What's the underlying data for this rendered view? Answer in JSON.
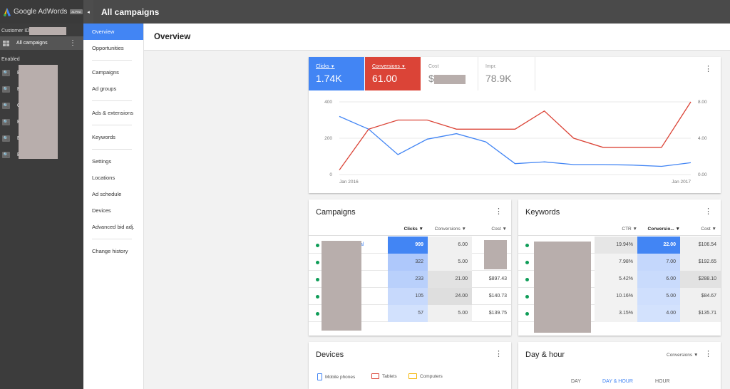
{
  "app": {
    "logo_text": "Google AdWords",
    "badge": "ALPHA"
  },
  "header": {
    "title": "All campaigns",
    "collapse_icon": "◂"
  },
  "sidebar": {
    "customer_id_label": "Customer ID",
    "all_campaigns_label": "All campaigns",
    "enabled_label": "Enabled",
    "campaigns": [
      {
        "initial": "E"
      },
      {
        "initial": "E"
      },
      {
        "initial": "C"
      },
      {
        "initial": "E"
      },
      {
        "initial": "E"
      },
      {
        "initial": "E"
      }
    ]
  },
  "nav": {
    "items": [
      "Overview",
      "Opportunities",
      "Campaigns",
      "Ad groups",
      "Ads & extensions",
      "Keywords",
      "Settings",
      "Locations",
      "Ad schedule",
      "Devices",
      "Advanced bid adj.",
      "Change history"
    ],
    "active": "Overview"
  },
  "page_title": "Overview",
  "metrics": [
    {
      "label": "Clicks",
      "value": "1.74K",
      "color": "#4285f4"
    },
    {
      "label": "Conversions",
      "value": "61.00",
      "color": "#db4437"
    },
    {
      "label": "Cost",
      "value": "$"
    },
    {
      "label": "Impr.",
      "value": "78.9K"
    }
  ],
  "chart_data": {
    "type": "line",
    "x_labels": [
      "Jan 2016",
      "Jan 2017"
    ],
    "y_left_ticks": [
      "400",
      "200",
      "0"
    ],
    "y_right_ticks": [
      "8.00",
      "4.00",
      "0.00"
    ],
    "y_left_range": [
      0,
      400
    ],
    "y_right_range": [
      0,
      8
    ],
    "series": [
      {
        "name": "Clicks",
        "color": "#4285f4",
        "axis": "left",
        "values": [
          320,
          250,
          110,
          195,
          225,
          180,
          60,
          70,
          55,
          55,
          52,
          45,
          65
        ]
      },
      {
        "name": "Conversions",
        "color": "#db4437",
        "axis": "right",
        "values": [
          0.5,
          5.0,
          6.0,
          6.0,
          5.0,
          5.0,
          5.0,
          7.0,
          4.0,
          3.0,
          3.0,
          3.0,
          8.0
        ]
      }
    ]
  },
  "campaigns_table": {
    "title": "Campaigns",
    "headers": [
      "Clicks",
      "Conversions",
      "Cost"
    ],
    "rows": [
      {
        "link": "al",
        "clicks": "999",
        "conversions": "6.00",
        "cost": "$"
      },
      {
        "link": "",
        "clicks": "322",
        "conversions": "5.00",
        "cost": ""
      },
      {
        "link": "",
        "clicks": "233",
        "conversions": "21.00",
        "cost": "$897.43"
      },
      {
        "link": "",
        "clicks": "105",
        "conversions": "24.00",
        "cost": "$140.73"
      },
      {
        "link": "",
        "clicks": "57",
        "conversions": "5.00",
        "cost": "$139.75"
      }
    ]
  },
  "keywords_table": {
    "title": "Keywords",
    "headers": [
      "CTR",
      "Conversio...",
      "Cost"
    ],
    "rows": [
      {
        "ctr": "19.94%",
        "conversions": "22.00",
        "cost": "$106.54"
      },
      {
        "ctr": "7.98%",
        "conversions": "7.00",
        "cost": "$192.65"
      },
      {
        "ctr": "5.42%",
        "conversions": "6.00",
        "cost": "$288.10"
      },
      {
        "ctr": "10.16%",
        "conversions": "5.00",
        "cost": "$84.67"
      },
      {
        "ctr": "3.15%",
        "conversions": "4.00",
        "cost": "$135.71"
      }
    ]
  },
  "devices": {
    "title": "Devices",
    "legend": [
      {
        "label": "Mobile phones",
        "color": "#4285f4"
      },
      {
        "label": "Tablets",
        "color": "#db4437"
      },
      {
        "label": "Computers",
        "color": "#f4b400"
      }
    ]
  },
  "day_hour": {
    "title": "Day & hour",
    "dropdown": "Conversions",
    "tabs": [
      "DAY",
      "DAY & HOUR",
      "HOUR"
    ],
    "active_tab": "DAY & HOUR"
  }
}
